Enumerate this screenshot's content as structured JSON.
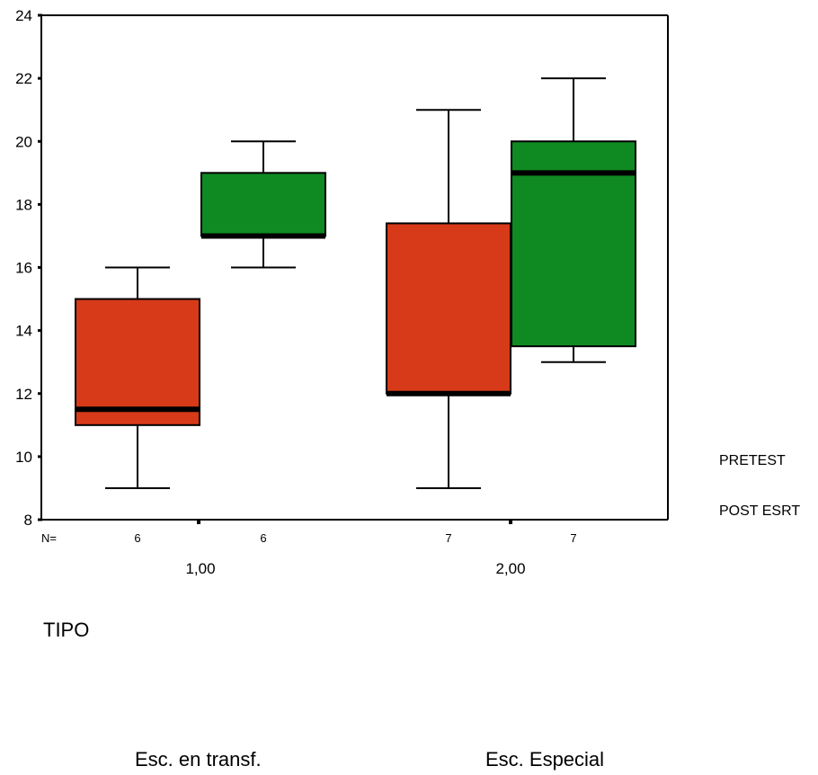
{
  "chart_data": {
    "type": "boxplot",
    "xlabel": "TIPO",
    "groups": [
      "1,00",
      "2,00"
    ],
    "group_descriptions": [
      "Esc. en transf.",
      "Esc. Especial"
    ],
    "n_label": "N=",
    "y_ticks": [
      "8",
      "10",
      "12",
      "14",
      "16",
      "18",
      "20",
      "22",
      "24"
    ],
    "ylim": [
      8,
      24
    ],
    "grid": false,
    "legend_placement": "right",
    "series": [
      {
        "name": "PRETEST",
        "color": "#d73a18",
        "boxes": [
          {
            "group": "1,00",
            "n": 6,
            "min": 9,
            "q1": 11,
            "median": 11.5,
            "q3": 15,
            "max": 16
          },
          {
            "group": "2,00",
            "n": 7,
            "min": 9,
            "q1": 12,
            "median": 12,
            "q3": 17.4,
            "max": 21
          }
        ]
      },
      {
        "name": "POST ESRT",
        "color": "#0f8a22",
        "boxes": [
          {
            "group": "1,00",
            "n": 6,
            "min": 16,
            "q1": 17,
            "median": 17,
            "q3": 19,
            "max": 20
          },
          {
            "group": "2,00",
            "n": 7,
            "min": 13,
            "q1": 13.5,
            "median": 19,
            "q3": 20,
            "max": 22
          }
        ]
      }
    ]
  }
}
